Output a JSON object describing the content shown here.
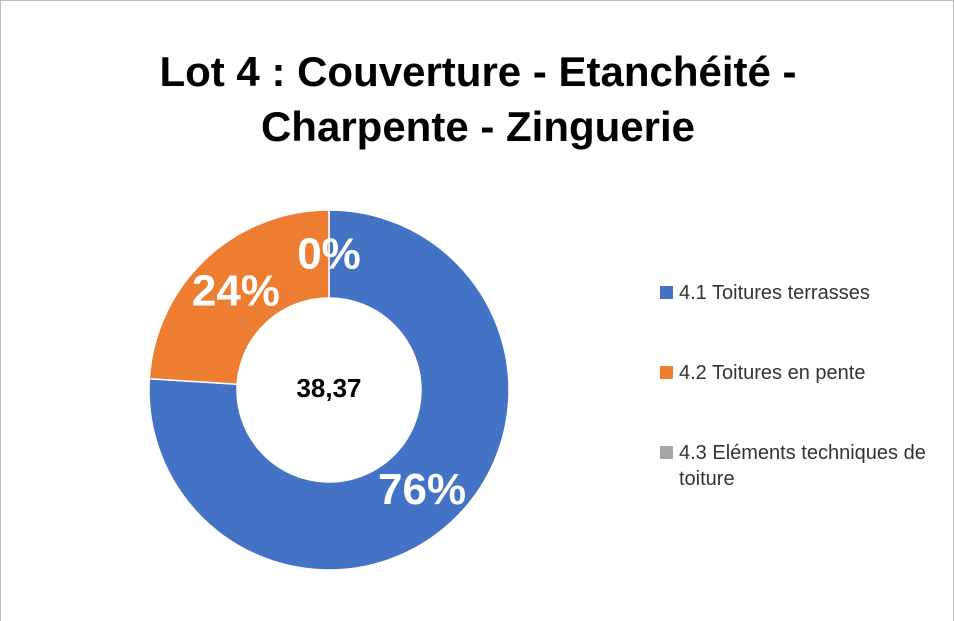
{
  "chart_data": {
    "type": "pie",
    "title": [
      "Lot 4 : Couverture - Etanchéité -",
      "Charpente - Zinguerie"
    ],
    "center_label": "38,37",
    "categories": [
      "4.1 Toitures terrasses",
      "4.2 Toitures en pente",
      "4.3 Eléments techniques de toiture"
    ],
    "values": [
      76,
      24,
      0
    ],
    "value_labels": [
      "76%",
      "24%",
      "0%"
    ],
    "colors": [
      "#4472c4",
      "#ed7d31",
      "#a5a5a5"
    ],
    "donut": true,
    "legend": "right"
  }
}
